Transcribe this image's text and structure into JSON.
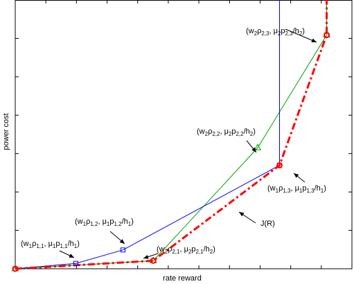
{
  "chart_data": {
    "type": "line",
    "xlabel": "rate reward",
    "ylabel": "power cost",
    "tick_labels": "none",
    "xlim": [
      0,
      1
    ],
    "ylim": [
      0,
      1
    ],
    "grid": false,
    "series": [
      {
        "id": "user1",
        "color": "#0000ff",
        "marker": "square",
        "points": [
          [
            0.0,
            0.0
          ],
          [
            0.18,
            0.02
          ],
          [
            0.32,
            0.07
          ],
          [
            0.785,
            0.385
          ],
          [
            0.785,
            1.0
          ]
        ]
      },
      {
        "id": "user2",
        "color": "#00a000",
        "marker": "triangle",
        "points": [
          [
            0.0,
            0.0
          ],
          [
            0.41,
            0.03
          ],
          [
            0.72,
            0.45
          ],
          [
            0.925,
            0.87
          ],
          [
            0.925,
            1.0
          ]
        ]
      },
      {
        "id": "J",
        "name": "J(R)",
        "color": "#ff0000",
        "marker": "circle",
        "points": [
          [
            0.0,
            0.0
          ],
          [
            0.41,
            0.03
          ],
          [
            0.785,
            0.385
          ],
          [
            0.925,
            0.87
          ],
          [
            0.925,
            1.0
          ]
        ]
      }
    ],
    "annotations": [
      {
        "id": "w1p11",
        "parts": [
          [
            "(w",
            null
          ],
          [
            "1",
            "sub"
          ],
          [
            "ρ",
            null
          ],
          [
            "1,1",
            "sub"
          ],
          [
            ", μ",
            null
          ],
          [
            "1",
            "sub"
          ],
          [
            "p",
            null
          ],
          [
            "1,1",
            "sub"
          ],
          [
            "/h",
            null
          ],
          [
            "1",
            "sub"
          ],
          [
            ")",
            null
          ]
        ]
      },
      {
        "id": "w1p12",
        "parts": [
          [
            "(w",
            null
          ],
          [
            "1",
            "sub"
          ],
          [
            "ρ",
            null
          ],
          [
            "1,2",
            "sub"
          ],
          [
            ", μ",
            null
          ],
          [
            "1",
            "sub"
          ],
          [
            "p",
            null
          ],
          [
            "1,2",
            "sub"
          ],
          [
            "/h",
            null
          ],
          [
            "1",
            "sub"
          ],
          [
            ")",
            null
          ]
        ]
      },
      {
        "id": "w1p13",
        "parts": [
          [
            "(w",
            null
          ],
          [
            "1",
            "sub"
          ],
          [
            "ρ",
            null
          ],
          [
            "1,3",
            "sub"
          ],
          [
            ", μ",
            null
          ],
          [
            "1",
            "sub"
          ],
          [
            "p",
            null
          ],
          [
            "1,3",
            "sub"
          ],
          [
            "/h",
            null
          ],
          [
            "1",
            "sub"
          ],
          [
            ")",
            null
          ]
        ]
      },
      {
        "id": "w2p21",
        "parts": [
          [
            "(w",
            null
          ],
          [
            "2",
            "sub"
          ],
          [
            "ρ",
            null
          ],
          [
            "2,1",
            "sub"
          ],
          [
            ", μ",
            null
          ],
          [
            "2",
            "sub"
          ],
          [
            "p",
            null
          ],
          [
            "2,1",
            "sub"
          ],
          [
            "/h",
            null
          ],
          [
            "2",
            "sub"
          ],
          [
            ")",
            null
          ]
        ]
      },
      {
        "id": "w2p22",
        "parts": [
          [
            "(w",
            null
          ],
          [
            "2",
            "sub"
          ],
          [
            "ρ",
            null
          ],
          [
            "2,2",
            "sub"
          ],
          [
            ", μ",
            null
          ],
          [
            "2",
            "sub"
          ],
          [
            "p",
            null
          ],
          [
            "2,2",
            "sub"
          ],
          [
            "/h",
            null
          ],
          [
            "2",
            "sub"
          ],
          [
            ")",
            null
          ]
        ]
      },
      {
        "id": "w2p23",
        "parts": [
          [
            "(w",
            null
          ],
          [
            "2",
            "sub"
          ],
          [
            "ρ",
            null
          ],
          [
            "2,3",
            "sub"
          ],
          [
            ", μ",
            null
          ],
          [
            "2",
            "sub"
          ],
          [
            "p",
            null
          ],
          [
            "2,3",
            "sub"
          ],
          [
            "/h",
            null
          ],
          [
            "2",
            "sub"
          ],
          [
            ")",
            null
          ]
        ]
      },
      {
        "id": "JR",
        "parts": [
          [
            "J(R)",
            null
          ]
        ]
      }
    ]
  }
}
